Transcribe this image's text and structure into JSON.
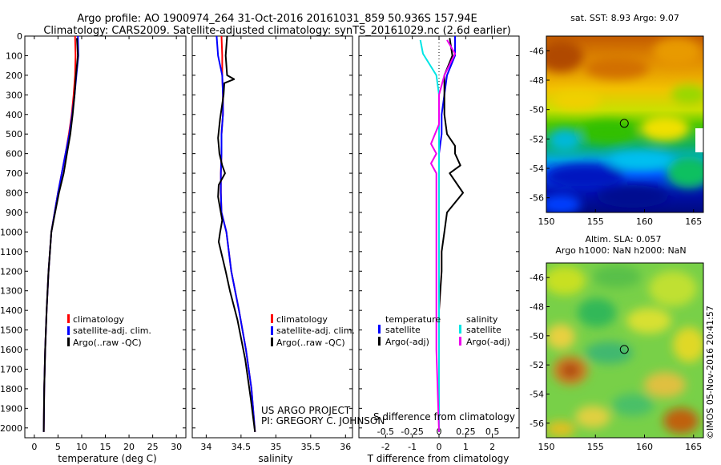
{
  "header": {
    "line1": "Argo profile: AO 1900974_264 31-Oct-2016 20161031_859 50.936S 157.94E",
    "line2": "Climatology: CARS2009. Satellite-adjusted climatology: synTS_20161029.nc (2.6d earlier)"
  },
  "credits": {
    "project": "US ARGO PROJECT",
    "pi": "PI: GREGORY C. JOHNSON",
    "side_stamp": "©IMOS 05-Nov-2016 20:41:57"
  },
  "colors": {
    "climatology": "#ff0000",
    "satellite": "#0000ff",
    "argo": "#000000",
    "salinity_satellite": "#00e5e5",
    "salinity_argo": "#ee00ee"
  },
  "chart_data": [
    {
      "type": "line",
      "id": "temperature",
      "xlabel": "temperature (deg C)",
      "ylabel": "",
      "xlim": [
        -2,
        32
      ],
      "ylim": [
        2050,
        0
      ],
      "xticks": [
        0,
        5,
        10,
        15,
        20,
        25,
        30
      ],
      "yticks": [
        0,
        100,
        200,
        300,
        400,
        500,
        600,
        700,
        800,
        900,
        1000,
        1100,
        1200,
        1300,
        1400,
        1500,
        1600,
        1700,
        1800,
        1900,
        2000
      ],
      "legend": {
        "placement": "center-right",
        "entries": [
          "climatology",
          "satellite-adj. clim.",
          "Argo(..raw -QC)"
        ]
      },
      "series": [
        {
          "name": "climatology",
          "color": "#ff0000",
          "x": [
            8.6,
            8.7,
            8.6,
            8.3,
            7.9,
            7.3,
            6.6,
            5.8,
            5.0,
            4.3,
            3.6,
            3.0,
            2.6,
            2.3,
            2.1,
            2.0
          ],
          "y": [
            0,
            100,
            200,
            300,
            400,
            500,
            600,
            700,
            800,
            900,
            1000,
            1200,
            1400,
            1600,
            1800,
            2020
          ]
        },
        {
          "name": "satellite-adj. clim.",
          "color": "#0000ff",
          "x": [
            9.2,
            9.3,
            8.9,
            8.5,
            8.0,
            7.4,
            6.6,
            5.8,
            5.0,
            4.3,
            3.6,
            3.0,
            2.6,
            2.3,
            2.1,
            2.0
          ],
          "y": [
            0,
            100,
            200,
            300,
            400,
            500,
            600,
            700,
            800,
            900,
            1000,
            1200,
            1400,
            1600,
            1800,
            2020
          ]
        },
        {
          "name": "Argo(..raw -QC)",
          "color": "#000000",
          "x": [
            9.0,
            9.2,
            8.8,
            8.5,
            8.1,
            7.6,
            6.9,
            6.2,
            5.2,
            4.4,
            3.6,
            3.0,
            2.6,
            2.3,
            2.1,
            2.0
          ],
          "y": [
            10,
            100,
            200,
            300,
            400,
            500,
            600,
            700,
            800,
            900,
            1000,
            1200,
            1400,
            1600,
            1800,
            2020
          ]
        }
      ]
    },
    {
      "type": "line",
      "id": "salinity",
      "xlabel": "salinity",
      "ylabel": "",
      "xlim": [
        33.8,
        36.1
      ],
      "ylim": [
        2050,
        0
      ],
      "xticks": [
        34,
        34.5,
        35,
        35.5,
        36
      ],
      "legend": {
        "placement": "center-right",
        "entries": [
          "climatology",
          "satellite-adj. clim.",
          "Argo(..raw -QC)"
        ]
      },
      "series": [
        {
          "name": "climatology",
          "color": "#ff0000",
          "x": [
            34.22,
            34.23,
            34.23,
            34.24,
            34.24,
            34.22,
            34.22,
            34.21,
            34.21,
            34.22,
            34.29,
            34.36,
            34.47,
            34.57,
            34.65,
            34.7
          ],
          "y": [
            0,
            100,
            200,
            300,
            400,
            500,
            600,
            700,
            800,
            900,
            1000,
            1200,
            1400,
            1600,
            1800,
            2020
          ]
        },
        {
          "name": "satellite-adj. clim.",
          "color": "#0000ff",
          "x": [
            34.15,
            34.17,
            34.23,
            34.24,
            34.24,
            34.22,
            34.22,
            34.21,
            34.21,
            34.22,
            34.29,
            34.36,
            34.47,
            34.57,
            34.65,
            34.7
          ],
          "y": [
            0,
            100,
            200,
            300,
            400,
            500,
            600,
            700,
            800,
            900,
            1000,
            1200,
            1400,
            1600,
            1800,
            2020
          ]
        },
        {
          "name": "Argo(..raw -QC)",
          "color": "#000000",
          "x": [
            34.3,
            34.28,
            34.3,
            34.4,
            34.26,
            34.25,
            34.2,
            34.17,
            34.19,
            34.23,
            34.27,
            34.18,
            34.17,
            34.2,
            34.23,
            34.2,
            34.18,
            34.28,
            34.34,
            34.45,
            34.56,
            34.64,
            34.7
          ],
          "y": [
            0,
            100,
            200,
            220,
            240,
            300,
            420,
            520,
            600,
            660,
            700,
            760,
            820,
            880,
            940,
            1000,
            1050,
            1200,
            1300,
            1450,
            1650,
            1850,
            2020
          ]
        }
      ]
    },
    {
      "type": "line",
      "id": "differences",
      "xlabel": "T difference from climatology",
      "xlabel_top": "S difference from climatology",
      "ylabel": "",
      "xlim": [
        -3,
        3
      ],
      "ylim": [
        2050,
        0
      ],
      "xticks": [
        -2,
        -1,
        0,
        1,
        2
      ],
      "xticks_top": [
        "-0.5",
        "-0.25",
        "0",
        "0.25",
        "0.5"
      ],
      "legend": {
        "placement": "center",
        "temperature_heading": "temperature",
        "salinity_heading": "salinity",
        "entries": [
          "satellite",
          "Argo(-adj)",
          "satellite",
          "Argo(-adj)"
        ]
      },
      "series": [
        {
          "name": "temperature satellite",
          "color": "#0000ff",
          "x": [
            0.6,
            0.6,
            0.3,
            0.2,
            0.1,
            0.1,
            0.0,
            0.0,
            0.0,
            0.0,
            0.0,
            0.0,
            0.0,
            0.0,
            0.0
          ],
          "y": [
            0,
            100,
            200,
            300,
            400,
            500,
            600,
            800,
            1000,
            1200,
            1400,
            1600,
            1800,
            1900,
            2020
          ]
        },
        {
          "name": "temperature Argo(-adj)",
          "color": "#000000",
          "x": [
            0.4,
            0.5,
            0.2,
            0.2,
            0.2,
            0.3,
            0.6,
            0.6,
            0.8,
            0.4,
            0.9,
            0.3,
            0.2,
            0.1,
            0.1,
            0.0,
            0.0,
            0.0,
            0.0
          ],
          "y": [
            10,
            100,
            200,
            300,
            400,
            500,
            560,
            600,
            660,
            700,
            800,
            900,
            1000,
            1100,
            1200,
            1400,
            1600,
            1800,
            2020
          ]
        },
        {
          "name": "salinity satellite",
          "color": "#00e5e5",
          "x": [
            -0.7,
            -0.6,
            -0.1,
            0.0,
            0.0,
            0.0,
            0.0,
            0.0,
            0.0,
            0.0,
            0.0
          ],
          "y": [
            20,
            90,
            200,
            300,
            400,
            600,
            800,
            1000,
            1400,
            1800,
            2020
          ]
        },
        {
          "name": "salinity Argo(-adj)",
          "color": "#ee00ee",
          "x": [
            0.3,
            0.6,
            0.2,
            0.0,
            0.0,
            -0.3,
            -0.1,
            -0.3,
            -0.1,
            -0.1,
            -0.1,
            -0.1,
            -0.1,
            0.0
          ],
          "y": [
            20,
            90,
            200,
            300,
            450,
            550,
            600,
            650,
            700,
            900,
            1100,
            1300,
            1600,
            2020
          ]
        }
      ]
    },
    {
      "type": "heatmap",
      "id": "sst_map",
      "title": "sat. SST: 8.93 Argo: 9.07",
      "xlim": [
        150,
        166
      ],
      "ylim": [
        -57,
        -45
      ],
      "xticks": [
        150,
        155,
        160,
        165
      ],
      "yticks": [
        -46,
        -48,
        -50,
        -52,
        -54,
        -56
      ],
      "marker": {
        "lon": 157.94,
        "lat": -50.936
      }
    },
    {
      "type": "heatmap",
      "id": "sla_map",
      "title_line1": "Altim. SLA: 0.057",
      "title_line2": "Argo h1000: NaN h2000: NaN",
      "xlim": [
        150,
        166
      ],
      "ylim": [
        -57,
        -45
      ],
      "xticks": [
        150,
        155,
        160,
        165
      ],
      "yticks": [
        -46,
        -48,
        -50,
        -52,
        -54,
        -56
      ],
      "marker": {
        "lon": 157.94,
        "lat": -50.936
      }
    }
  ]
}
